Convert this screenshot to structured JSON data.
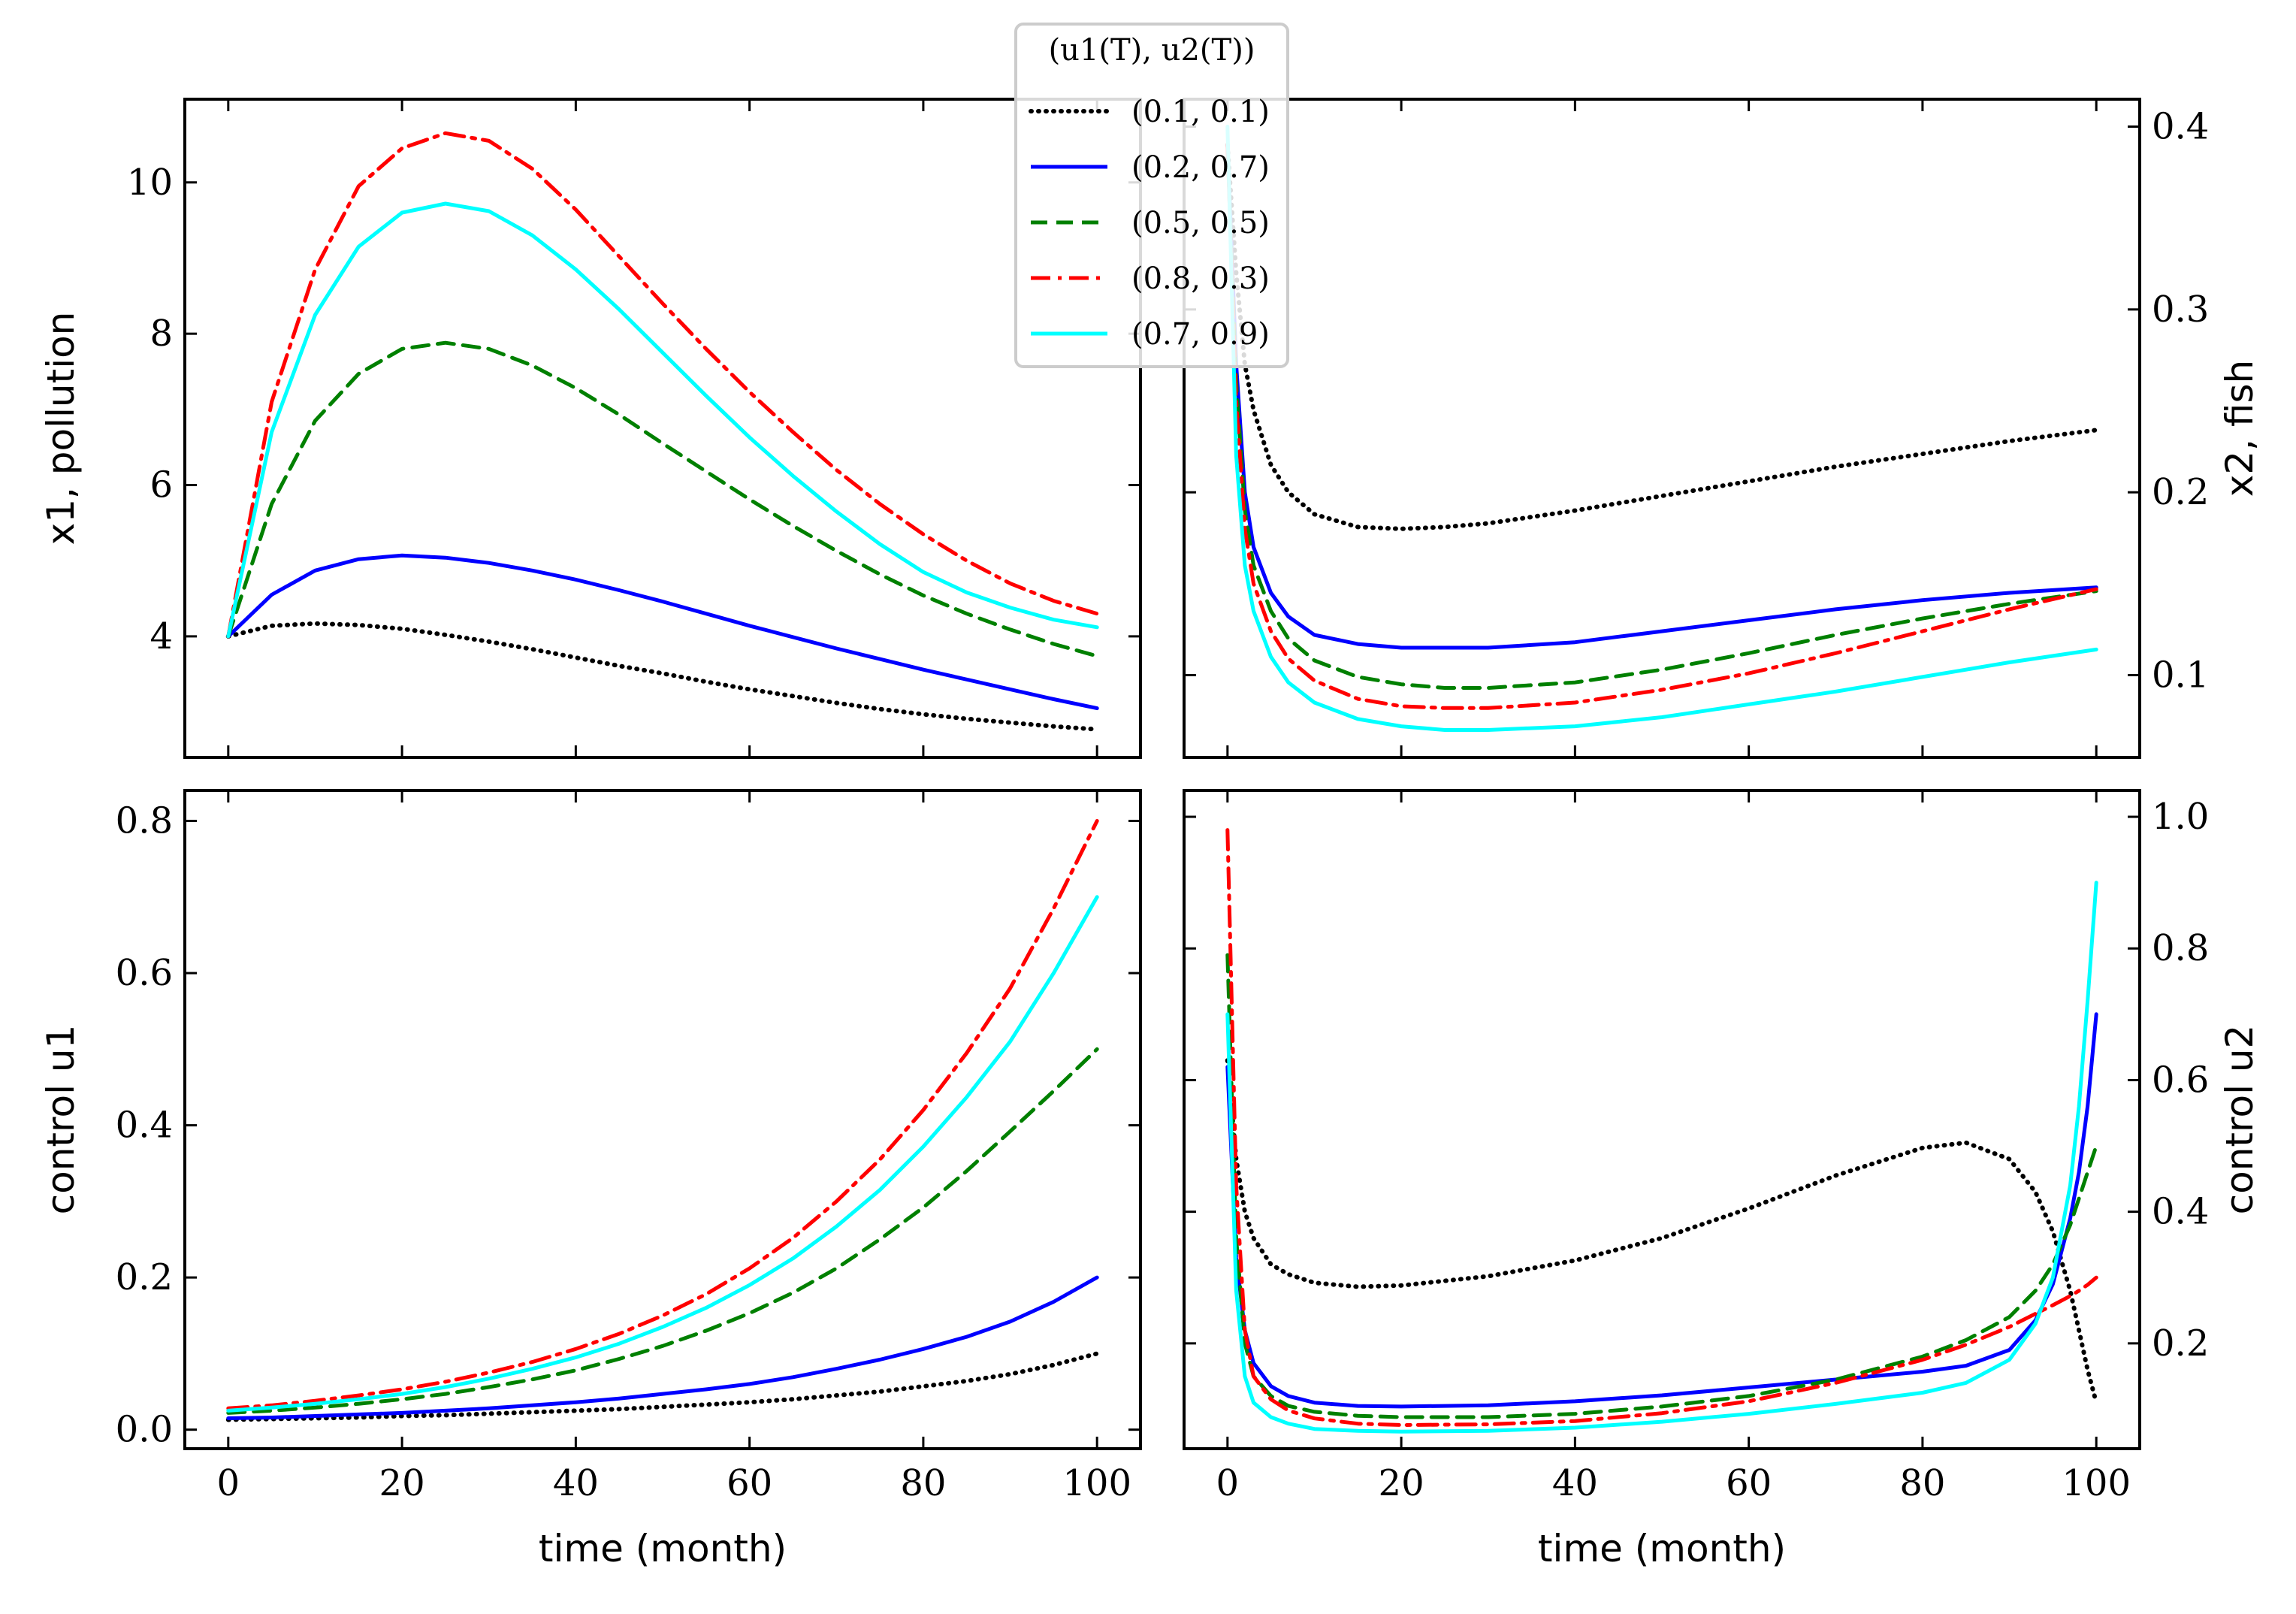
{
  "legend": {
    "title": "(u1(T), u2(T))",
    "entries": [
      {
        "label": "(0.1, 0.1)",
        "color": "#000000",
        "dash": "dotted"
      },
      {
        "label": "(0.2, 0.7)",
        "color": "#0000ff",
        "dash": "solid"
      },
      {
        "label": "(0.5, 0.5)",
        "color": "#008000",
        "dash": "dashed"
      },
      {
        "label": "(0.8, 0.3)",
        "color": "#ff0000",
        "dash": "dashdot"
      },
      {
        "label": "(0.7, 0.9)",
        "color": "#00ffff",
        "dash": "solid"
      }
    ]
  },
  "chart_data": [
    {
      "id": "pollution",
      "type": "line",
      "xlabel": "",
      "ylabel": "x1, pollution",
      "xlim": [
        -5,
        105
      ],
      "ylim": [
        2.4,
        11.1
      ],
      "xticks": [
        0,
        20,
        40,
        60,
        80,
        100
      ],
      "yticks": [
        4,
        6,
        8,
        10
      ],
      "ytick_labels": [
        "4",
        "6",
        "8",
        "10"
      ],
      "y_axis_side": "left",
      "x": [
        0,
        5,
        10,
        15,
        20,
        25,
        30,
        35,
        40,
        45,
        50,
        55,
        60,
        65,
        70,
        75,
        80,
        85,
        90,
        95,
        100
      ],
      "series": [
        {
          "name": "(0.1, 0.1)",
          "values": [
            4.0,
            4.14,
            4.17,
            4.15,
            4.1,
            4.02,
            3.93,
            3.83,
            3.72,
            3.61,
            3.51,
            3.4,
            3.3,
            3.21,
            3.12,
            3.04,
            2.97,
            2.91,
            2.86,
            2.81,
            2.77
          ]
        },
        {
          "name": "(0.2, 0.7)",
          "values": [
            4.0,
            4.55,
            4.87,
            5.02,
            5.07,
            5.04,
            4.97,
            4.87,
            4.75,
            4.61,
            4.46,
            4.3,
            4.14,
            3.99,
            3.84,
            3.7,
            3.56,
            3.43,
            3.3,
            3.17,
            3.05
          ]
        },
        {
          "name": "(0.5, 0.5)",
          "values": [
            4.0,
            5.75,
            6.85,
            7.47,
            7.8,
            7.88,
            7.8,
            7.58,
            7.28,
            6.93,
            6.55,
            6.18,
            5.81,
            5.46,
            5.13,
            4.82,
            4.54,
            4.3,
            4.09,
            3.9,
            3.74
          ]
        },
        {
          "name": "(0.8, 0.3)",
          "values": [
            4.0,
            7.1,
            8.85,
            9.95,
            10.45,
            10.65,
            10.55,
            10.18,
            9.64,
            9.02,
            8.4,
            7.8,
            7.23,
            6.7,
            6.2,
            5.75,
            5.35,
            5.0,
            4.7,
            4.47,
            4.3
          ]
        },
        {
          "name": "(0.7, 0.9)",
          "values": [
            4.0,
            6.7,
            8.25,
            9.15,
            9.6,
            9.72,
            9.62,
            9.3,
            8.85,
            8.32,
            7.75,
            7.18,
            6.63,
            6.12,
            5.65,
            5.22,
            4.85,
            4.58,
            4.38,
            4.22,
            4.12
          ]
        }
      ]
    },
    {
      "id": "fish",
      "type": "line",
      "xlabel": "",
      "ylabel": "x2, fish",
      "xlim": [
        -5,
        105
      ],
      "ylim": [
        0.055,
        0.415
      ],
      "xticks": [
        0,
        20,
        40,
        60,
        80,
        100
      ],
      "yticks": [
        0.1,
        0.2,
        0.3,
        0.4
      ],
      "ytick_labels": [
        "0.1",
        "0.2",
        "0.3",
        "0.4"
      ],
      "y_axis_side": "right",
      "x": [
        0,
        1,
        2,
        3,
        5,
        7,
        10,
        15,
        20,
        25,
        30,
        40,
        50,
        60,
        70,
        80,
        90,
        100
      ],
      "series": [
        {
          "name": "(0.1, 0.1)",
          "values": [
            0.39,
            0.32,
            0.27,
            0.245,
            0.215,
            0.2,
            0.188,
            0.181,
            0.18,
            0.181,
            0.183,
            0.19,
            0.198,
            0.206,
            0.214,
            0.221,
            0.228,
            0.234
          ]
        },
        {
          "name": "(0.2, 0.7)",
          "values": [
            0.39,
            0.27,
            0.2,
            0.17,
            0.145,
            0.132,
            0.122,
            0.117,
            0.115,
            0.115,
            0.115,
            0.118,
            0.124,
            0.13,
            0.136,
            0.141,
            0.145,
            0.148
          ]
        },
        {
          "name": "(0.5, 0.5)",
          "values": [
            0.39,
            0.26,
            0.19,
            0.16,
            0.135,
            0.12,
            0.108,
            0.099,
            0.095,
            0.093,
            0.093,
            0.096,
            0.103,
            0.112,
            0.122,
            0.131,
            0.139,
            0.146
          ]
        },
        {
          "name": "(0.8, 0.3)",
          "values": [
            0.39,
            0.25,
            0.18,
            0.15,
            0.124,
            0.109,
            0.097,
            0.087,
            0.083,
            0.082,
            0.082,
            0.085,
            0.092,
            0.101,
            0.112,
            0.124,
            0.136,
            0.147
          ]
        },
        {
          "name": "(0.7, 0.9)",
          "values": [
            0.4,
            0.22,
            0.16,
            0.135,
            0.11,
            0.096,
            0.085,
            0.076,
            0.072,
            0.07,
            0.07,
            0.072,
            0.077,
            0.084,
            0.091,
            0.099,
            0.107,
            0.114
          ]
        }
      ]
    },
    {
      "id": "control_u1",
      "type": "line",
      "xlabel": "time (month)",
      "ylabel": "control u1",
      "xlim": [
        -5,
        105
      ],
      "ylim": [
        -0.025,
        0.84
      ],
      "xticks": [
        0,
        20,
        40,
        60,
        80,
        100
      ],
      "xtick_labels": [
        "0",
        "20",
        "40",
        "60",
        "80",
        "100"
      ],
      "yticks": [
        0.0,
        0.2,
        0.4,
        0.6,
        0.8
      ],
      "ytick_labels": [
        "0.0",
        "0.2",
        "0.4",
        "0.6",
        "0.8"
      ],
      "y_axis_side": "left",
      "x": [
        0,
        5,
        10,
        15,
        20,
        25,
        30,
        35,
        40,
        45,
        50,
        55,
        60,
        65,
        70,
        75,
        80,
        85,
        90,
        95,
        100
      ],
      "series": [
        {
          "name": "(0.1, 0.1)",
          "values": [
            0.013,
            0.014,
            0.015,
            0.016,
            0.018,
            0.019,
            0.021,
            0.023,
            0.025,
            0.027,
            0.03,
            0.033,
            0.036,
            0.04,
            0.045,
            0.05,
            0.057,
            0.064,
            0.073,
            0.085,
            0.1
          ]
        },
        {
          "name": "(0.2, 0.7)",
          "values": [
            0.015,
            0.016,
            0.018,
            0.02,
            0.022,
            0.025,
            0.028,
            0.032,
            0.036,
            0.041,
            0.047,
            0.053,
            0.06,
            0.069,
            0.08,
            0.092,
            0.106,
            0.122,
            0.142,
            0.168,
            0.2
          ]
        },
        {
          "name": "(0.5, 0.5)",
          "values": [
            0.022,
            0.025,
            0.029,
            0.034,
            0.04,
            0.047,
            0.056,
            0.066,
            0.078,
            0.093,
            0.11,
            0.13,
            0.153,
            0.18,
            0.212,
            0.25,
            0.292,
            0.34,
            0.392,
            0.445,
            0.5
          ]
        },
        {
          "name": "(0.8, 0.3)",
          "values": [
            0.028,
            0.032,
            0.038,
            0.045,
            0.053,
            0.063,
            0.075,
            0.089,
            0.106,
            0.126,
            0.15,
            0.178,
            0.212,
            0.252,
            0.3,
            0.355,
            0.42,
            0.495,
            0.58,
            0.685,
            0.8
          ]
        },
        {
          "name": "(0.7, 0.9)",
          "values": [
            0.025,
            0.029,
            0.034,
            0.04,
            0.047,
            0.056,
            0.067,
            0.08,
            0.095,
            0.113,
            0.135,
            0.16,
            0.19,
            0.225,
            0.267,
            0.315,
            0.372,
            0.437,
            0.51,
            0.6,
            0.7
          ]
        }
      ]
    },
    {
      "id": "control_u2",
      "type": "line",
      "xlabel": "time (month)",
      "ylabel": "control u2",
      "xlim": [
        -5,
        105
      ],
      "ylim": [
        0.04,
        1.04
      ],
      "xticks": [
        0,
        20,
        40,
        60,
        80,
        100
      ],
      "xtick_labels": [
        "0",
        "20",
        "40",
        "60",
        "80",
        "100"
      ],
      "yticks": [
        0.2,
        0.4,
        0.6,
        0.8,
        1.0
      ],
      "ytick_labels": [
        "0.2",
        "0.4",
        "0.6",
        "0.8",
        "1.0"
      ],
      "y_axis_side": "right",
      "x": [
        0,
        1,
        2,
        3,
        5,
        7,
        10,
        15,
        20,
        30,
        40,
        50,
        60,
        70,
        80,
        85,
        90,
        93,
        95,
        97,
        98,
        99,
        100
      ],
      "series": [
        {
          "name": "(0.1, 0.1)",
          "values": [
            0.63,
            0.48,
            0.4,
            0.36,
            0.32,
            0.305,
            0.292,
            0.286,
            0.288,
            0.302,
            0.326,
            0.36,
            0.405,
            0.455,
            0.497,
            0.505,
            0.48,
            0.43,
            0.37,
            0.28,
            0.22,
            0.16,
            0.11
          ]
        },
        {
          "name": "(0.2, 0.7)",
          "values": [
            0.62,
            0.33,
            0.22,
            0.17,
            0.135,
            0.12,
            0.11,
            0.105,
            0.104,
            0.106,
            0.112,
            0.121,
            0.133,
            0.145,
            0.157,
            0.166,
            0.19,
            0.235,
            0.29,
            0.39,
            0.46,
            0.56,
            0.7
          ]
        },
        {
          "name": "(0.5, 0.5)",
          "values": [
            0.79,
            0.36,
            0.2,
            0.15,
            0.12,
            0.105,
            0.096,
            0.09,
            0.088,
            0.088,
            0.093,
            0.104,
            0.12,
            0.145,
            0.18,
            0.205,
            0.24,
            0.28,
            0.32,
            0.38,
            0.42,
            0.46,
            0.5
          ]
        },
        {
          "name": "(0.8, 0.3)",
          "values": [
            0.98,
            0.44,
            0.22,
            0.15,
            0.115,
            0.098,
            0.086,
            0.078,
            0.076,
            0.077,
            0.082,
            0.094,
            0.112,
            0.14,
            0.175,
            0.198,
            0.225,
            0.245,
            0.258,
            0.272,
            0.28,
            0.289,
            0.3
          ]
        },
        {
          "name": "(0.7, 0.9)",
          "values": [
            0.7,
            0.28,
            0.15,
            0.11,
            0.088,
            0.078,
            0.07,
            0.067,
            0.066,
            0.067,
            0.072,
            0.081,
            0.093,
            0.108,
            0.125,
            0.14,
            0.175,
            0.23,
            0.3,
            0.44,
            0.56,
            0.72,
            0.9
          ]
        }
      ]
    }
  ]
}
